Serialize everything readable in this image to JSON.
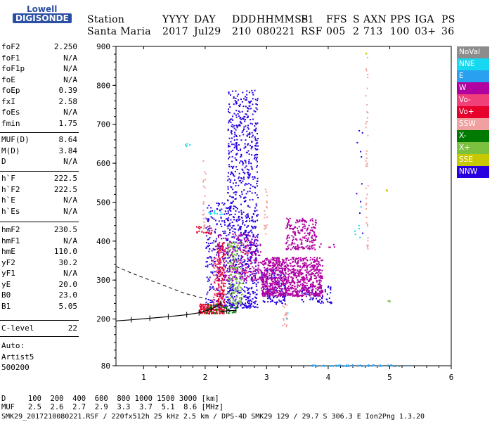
{
  "logo": {
    "top": "Lowell",
    "bottom": "DIGISONDE"
  },
  "header": {
    "labels": [
      "Station",
      "YYYY",
      "DAY",
      "DDD",
      "HHMMSS",
      "P1",
      "FFS",
      "S",
      "AXN",
      "PPS",
      "IGA",
      "PS"
    ],
    "values": [
      "Santa Maria",
      "2017",
      "Jul29",
      "210",
      "080221",
      "RSF",
      "005",
      "2",
      "713",
      "100",
      "03+",
      "36"
    ]
  },
  "params_group1": [
    {
      "label": "foF2",
      "value": "2.250"
    },
    {
      "label": "foF1",
      "value": "N/A"
    },
    {
      "label": "foF1p",
      "value": "N/A"
    },
    {
      "label": "foE",
      "value": "N/A"
    },
    {
      "label": "foEp",
      "value": "0.39"
    },
    {
      "label": "fxI",
      "value": "2.58"
    },
    {
      "label": "foEs",
      "value": "N/A"
    },
    {
      "label": "fmin",
      "value": "1.75"
    }
  ],
  "params_group2": [
    {
      "label": "MUF(D)",
      "value": "8.64"
    },
    {
      "label": "M(D)",
      "value": "3.84"
    },
    {
      "label": "D",
      "value": "N/A"
    }
  ],
  "params_group3": [
    {
      "label": "h`F",
      "value": "222.5"
    },
    {
      "label": "h`F2",
      "value": "222.5"
    },
    {
      "label": "h`E",
      "value": "N/A"
    },
    {
      "label": "h`Es",
      "value": "N/A"
    }
  ],
  "params_group4": [
    {
      "label": "hmF2",
      "value": "230.5"
    },
    {
      "label": "hmF1",
      "value": "N/A"
    },
    {
      "label": "hmE",
      "value": "110.0"
    },
    {
      "label": "yF2",
      "value": "30.2"
    },
    {
      "label": "yF1",
      "value": "N/A"
    },
    {
      "label": "yE",
      "value": "20.0"
    },
    {
      "label": "B0",
      "value": "23.0"
    },
    {
      "label": "B1",
      "value": "5.05"
    }
  ],
  "clevel": {
    "label": "C-level",
    "value": "22"
  },
  "auto": {
    "line1": "Auto:",
    "line2": "Artist5",
    "line3": "500200"
  },
  "legend": [
    {
      "label": "NoVal",
      "color": "#8c8c8c"
    },
    {
      "label": "NNE",
      "color": "#16d8f0"
    },
    {
      "label": "E",
      "color": "#2aa0f0"
    },
    {
      "label": "W",
      "color": "#b000a0"
    },
    {
      "label": "Vo-",
      "color": "#f0407a"
    },
    {
      "label": "Vo+",
      "color": "#e8002c"
    },
    {
      "label": "SSW",
      "color": "#f0a0a0"
    },
    {
      "label": "X-",
      "color": "#007a00"
    },
    {
      "label": "X+",
      "color": "#7cc040"
    },
    {
      "label": "SSE",
      "color": "#c8c800"
    },
    {
      "label": "NNW",
      "color": "#2800e0"
    }
  ],
  "footer": {
    "line1": "D     100  200  400  600  800 1000 1500 3000 [km]",
    "line2": "MUF   2.5  2.6  2.7  2.9  3.3  3.7  5.1  8.6 [MHz]",
    "line3": "SMK29_2017210080221.RSF / 220fx512h 25 kHz 2.5 km / DPS-4D SMK29 129 / 29.7 S 306.3 E Ion2Png 1.3.20"
  },
  "chart_data": {
    "type": "scatter",
    "title": "",
    "xlabel": "",
    "ylabel": "",
    "xlim": [
      0.55,
      6.0
    ],
    "ylim": [
      80,
      900
    ],
    "x_ticks": [
      1,
      2,
      3,
      4,
      5,
      6
    ],
    "y_ticks": [
      80,
      200,
      300,
      400,
      500,
      600,
      700,
      800,
      900
    ],
    "grid": false,
    "legend_position": "right",
    "series": [
      {
        "name": "NNW",
        "color": "#2800e0",
        "clusters": [
          {
            "x": [
              2.35,
              2.85
            ],
            "y": [
              230,
              790
            ],
            "n": 900
          },
          {
            "x": [
              2.0,
              2.4
            ],
            "y": [
              230,
              500
            ],
            "n": 250
          },
          {
            "x": [
              2.9,
              3.3
            ],
            "y": [
              240,
              330
            ],
            "n": 140
          },
          {
            "x": [
              3.55,
              4.05
            ],
            "y": [
              242,
              288
            ],
            "n": 70
          },
          {
            "x": [
              4.45,
              4.55
            ],
            "y": [
              420,
              700
            ],
            "n": 10
          }
        ]
      },
      {
        "name": "W",
        "color": "#b000a0",
        "clusters": [
          {
            "x": [
              2.9,
              3.9
            ],
            "y": [
              260,
              360
            ],
            "n": 900
          },
          {
            "x": [
              3.3,
              3.8
            ],
            "y": [
              380,
              460
            ],
            "n": 200
          },
          {
            "x": [
              2.2,
              2.9
            ],
            "y": [
              300,
              420
            ],
            "n": 250
          },
          {
            "x": [
              3.85,
              4.1
            ],
            "y": [
              385,
              395
            ],
            "n": 6
          }
        ]
      },
      {
        "name": "Vo+",
        "color": "#e8002c",
        "clusters": [
          {
            "x": [
              1.9,
              2.3
            ],
            "y": [
              215,
              240
            ],
            "n": 150
          },
          {
            "x": [
              2.18,
              2.3
            ],
            "y": [
              240,
              400
            ],
            "n": 120
          },
          {
            "x": [
              1.85,
              2.1
            ],
            "y": [
              420,
              440
            ],
            "n": 25
          }
        ]
      },
      {
        "name": "Vo-",
        "color": "#f0407a",
        "clusters": [
          {
            "x": [
              2.1,
              2.32
            ],
            "y": [
              240,
              360
            ],
            "n": 50
          },
          {
            "x": [
              2.5,
              2.7
            ],
            "y": [
              320,
              400
            ],
            "n": 20
          }
        ]
      },
      {
        "name": "X+",
        "color": "#7cc040",
        "clusters": [
          {
            "x": [
              2.35,
              2.6
            ],
            "y": [
              240,
              400
            ],
            "n": 120
          },
          {
            "x": [
              4.96,
              5.0
            ],
            "y": [
              242,
              250
            ],
            "n": 3
          }
        ]
      },
      {
        "name": "X-",
        "color": "#007a00",
        "clusters": [
          {
            "x": [
              2.0,
              2.5
            ],
            "y": [
              215,
              240
            ],
            "n": 50
          }
        ]
      },
      {
        "name": "NNE",
        "color": "#16d8f0",
        "clusters": [
          {
            "x": [
              1.65,
              1.75
            ],
            "y": [
              645,
              655
            ],
            "n": 5
          },
          {
            "x": [
              2.05,
              2.35
            ],
            "y": [
              470,
              480
            ],
            "n": 12
          },
          {
            "x": [
              4.4,
              4.65
            ],
            "y": [
              410,
              500
            ],
            "n": 6
          },
          {
            "x": [
              3.3,
              3.35
            ],
            "y": [
              200,
              230
            ],
            "n": 3
          }
        ]
      },
      {
        "name": "SSW",
        "color": "#f0a0a0",
        "clusters": [
          {
            "x": [
              1.95,
              2.0
            ],
            "y": [
              430,
              610
            ],
            "n": 25
          },
          {
            "x": [
              2.95,
              3.0
            ],
            "y": [
              420,
              560
            ],
            "n": 20
          },
          {
            "x": [
              3.25,
              3.32
            ],
            "y": [
              180,
              240
            ],
            "n": 15
          },
          {
            "x": [
              4.6,
              4.64
            ],
            "y": [
              380,
              880
            ],
            "n": 40
          }
        ]
      },
      {
        "name": "SSE",
        "color": "#c8c800",
        "clusters": [
          {
            "x": [
              4.9,
              4.95
            ],
            "y": [
              530,
              540
            ],
            "n": 3
          },
          {
            "x": [
              4.6,
              4.62
            ],
            "y": [
              880,
              890
            ],
            "n": 2
          }
        ]
      },
      {
        "name": "E",
        "color": "#2aa0f0",
        "clusters": [
          {
            "x": [
              3.7,
              5.3
            ],
            "y": [
              80,
              84
            ],
            "n": 60
          }
        ]
      }
    ],
    "traces": [
      {
        "name": "ordinary-trace",
        "style": "black-ticked",
        "x": [
          0.55,
          0.8,
          1.1,
          1.4,
          1.7,
          1.9,
          2.1,
          2.25
        ],
        "y": [
          195,
          198,
          202,
          206,
          211,
          216,
          225,
          240
        ]
      },
      {
        "name": "ordinary-trace-ext",
        "style": "black-ticked",
        "x": [
          2.25,
          2.35,
          2.5
        ],
        "y": [
          218,
          221,
          222
        ]
      },
      {
        "name": "profile-dashed",
        "style": "black-dashed",
        "x": [
          0.55,
          0.8,
          1.1,
          1.4,
          1.65,
          1.85,
          2.0
        ],
        "y": [
          335,
          318,
          300,
          282,
          267,
          258,
          253
        ]
      }
    ]
  }
}
